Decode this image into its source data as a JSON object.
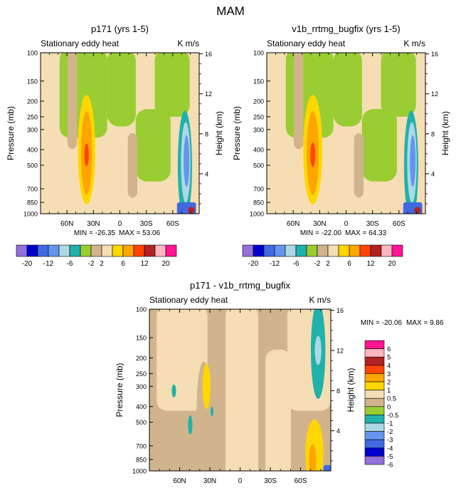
{
  "figure_title": "MAM",
  "colors": {
    "abs_levels": [
      "#9370db",
      "#0000cd",
      "#4169e1",
      "#6495ed",
      "#add8e6",
      "#20b2aa",
      "#9acd32",
      "#d2b48c",
      "#f5deb3",
      "#ffd700",
      "#ffa500",
      "#ff4500",
      "#b22222",
      "#ffb6c1",
      "#ff1493"
    ],
    "diff_levels": [
      "#9370db",
      "#0000cd",
      "#4169e1",
      "#6495ed",
      "#add8e6",
      "#20b2aa",
      "#9acd32",
      "#d2b48c",
      "#f5deb3",
      "#ffd700",
      "#ffa500",
      "#ff4500",
      "#b22222",
      "#ffb6c1",
      "#ff1493"
    ],
    "line": "#000000",
    "background": "#ffffff"
  },
  "chart_data": [
    {
      "type": "heatmap",
      "title": "p171 (yrs 1-5)",
      "subtitle_left": "Stationary eddy heat",
      "subtitle_right": "K m/s",
      "ylabel": "Pressure (mb)",
      "ylabel_right": "Height (km)",
      "x_ticks": [
        "60N",
        "30N",
        "0",
        "30S",
        "60S"
      ],
      "x_values": [
        60,
        30,
        0,
        -30,
        -60
      ],
      "xlim": [
        90,
        -90
      ],
      "y_ticks": [
        "100",
        "150",
        "200",
        "250",
        "300",
        "400",
        "500",
        "700",
        "850",
        "1000"
      ],
      "y_values": [
        100,
        150,
        200,
        250,
        300,
        400,
        500,
        700,
        850,
        1000
      ],
      "ylim": [
        1000,
        100
      ],
      "height_ticks": [
        "16",
        "12",
        "8",
        "4"
      ],
      "height_values": [
        16,
        12,
        8,
        4
      ],
      "min_label": "MIN = -26.35",
      "max_label": "MAX =  53.06",
      "min": -26.35,
      "max": 53.06,
      "colorbar_labels": [
        "-20",
        "-12",
        "-6",
        "-2",
        "2",
        "6",
        "12",
        "20"
      ],
      "colorbar_orientation": "horizontal"
    },
    {
      "type": "heatmap",
      "title": "v1b_rrtmg_bugfix (yrs 1-5)",
      "subtitle_left": "Stationary eddy heat",
      "subtitle_right": "K m/s",
      "ylabel": "Pressure (mb)",
      "ylabel_right": "Height (km)",
      "x_ticks": [
        "60N",
        "30N",
        "0",
        "30S",
        "60S"
      ],
      "x_values": [
        60,
        30,
        0,
        -30,
        -60
      ],
      "xlim": [
        90,
        -90
      ],
      "y_ticks": [
        "100",
        "150",
        "200",
        "250",
        "300",
        "400",
        "500",
        "700",
        "850",
        "1000"
      ],
      "y_values": [
        100,
        150,
        200,
        250,
        300,
        400,
        500,
        700,
        850,
        1000
      ],
      "ylim": [
        1000,
        100
      ],
      "height_ticks": [
        "16",
        "12",
        "8",
        "4"
      ],
      "height_values": [
        16,
        12,
        8,
        4
      ],
      "min_label": "MIN = -22.00",
      "max_label": "MAX =  64.33",
      "min": -22.0,
      "max": 64.33,
      "colorbar_labels": [
        "-20",
        "-12",
        "-6",
        "-2",
        "2",
        "6",
        "12",
        "20"
      ],
      "colorbar_orientation": "horizontal"
    },
    {
      "type": "heatmap",
      "title": "p171 - v1b_rrtmg_bugfix",
      "subtitle_left": "Stationary eddy heat",
      "subtitle_right": "K m/s",
      "ylabel": "Pressure (mb)",
      "ylabel_right": "Height (km)",
      "x_ticks": [
        "60N",
        "30N",
        "0",
        "30S",
        "60S"
      ],
      "x_values": [
        60,
        30,
        0,
        -30,
        -60
      ],
      "xlim": [
        90,
        -90
      ],
      "y_ticks": [
        "100",
        "150",
        "200",
        "250",
        "300",
        "400",
        "500",
        "700",
        "850",
        "1000"
      ],
      "y_values": [
        100,
        150,
        200,
        250,
        300,
        400,
        500,
        700,
        850,
        1000
      ],
      "ylim": [
        1000,
        100
      ],
      "height_ticks": [
        "16",
        "12",
        "8",
        "4"
      ],
      "height_values": [
        16,
        12,
        8,
        4
      ],
      "min_label": "MIN = -20.06",
      "max_label": "MAX =   9.86",
      "min": -20.06,
      "max": 9.86,
      "colorbar_labels": [
        "6",
        "5",
        "4",
        "3",
        "2",
        "1",
        "0.5",
        "0",
        "-0.5",
        "-1",
        "-2",
        "-3",
        "-4",
        "-5",
        "-6"
      ],
      "colorbar_orientation": "vertical"
    }
  ]
}
